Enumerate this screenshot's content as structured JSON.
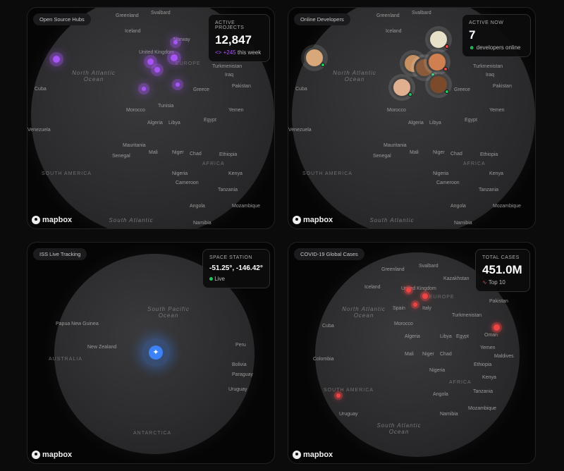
{
  "brand": "mapbox",
  "colors": {
    "projects": "#a855f7",
    "live": "#22c55e",
    "covid": "#ef4444",
    "iss": "#3b82f6"
  },
  "panels": [
    {
      "title": "Open Source Hubs",
      "card": {
        "label": "ACTIVE PROJECTS",
        "value": "12,847",
        "delta": "+245",
        "delta_suffix": "this week",
        "icon": "code-icon"
      },
      "labels": [
        "Greenland",
        "Svalbard",
        "Iceland",
        "Norway",
        "United Kingdom",
        "EUROPE",
        "North Atlantic Ocean",
        "Cuba",
        "Venezuela",
        "Morocco",
        "Algeria",
        "Libya",
        "Tunisia",
        "Greece",
        "Turkmenistan",
        "Iraq",
        "Pakistan",
        "Egypt",
        "Yemen",
        "Mauritania",
        "Mali",
        "Niger",
        "Chad",
        "Senegal",
        "Nigeria",
        "Cameroon",
        "Ethiopia",
        "Kenya",
        "Tanzania",
        "Angola",
        "Mozambique",
        "Namibia",
        "SOUTH AMERICA",
        "AFRICA",
        "South Atlantic"
      ]
    },
    {
      "title": "Online Developers",
      "card": {
        "label": "ACTIVE NOW",
        "value": "7",
        "sub": "developers online",
        "icon": "users-icon"
      },
      "labels": [
        "Greenland",
        "Svalbard",
        "Iceland",
        "North Atlantic Ocean",
        "Cuba",
        "Venezuela",
        "Morocco",
        "Algeria",
        "Libya",
        "Greece",
        "Turkmenistan",
        "Iraq",
        "Pakistan",
        "Egypt",
        "Yemen",
        "Mauritania",
        "Mali",
        "Niger",
        "Chad",
        "Senegal",
        "Nigeria",
        "Cameroon",
        "Ethiopia",
        "Kenya",
        "Tanzania",
        "Angola",
        "Mozambique",
        "Namibia",
        "SOUTH AMERICA",
        "AFRICA",
        "South Atlantic"
      ]
    },
    {
      "title": "ISS Live Tracking",
      "card": {
        "label": "SPACE STATION",
        "value": "-51.25°, -146.42°",
        "status": "Live"
      },
      "labels": [
        "South Pacific Ocean",
        "Papua New Guinea",
        "New Zealand",
        "AUSTRALIA",
        "Peru",
        "Bolivia",
        "Paraguay",
        "Uruguay",
        "ANTARCTICA"
      ]
    },
    {
      "title": "COVID-19 Global Cases",
      "card": {
        "label": "TOTAL CASES",
        "value": "451.0M",
        "sub": "Top 10",
        "icon": "activity-icon"
      },
      "labels": [
        "Greenland",
        "Svalbard",
        "Iceland",
        "United Kingdom",
        "Spain",
        "Italy",
        "EUROPE",
        "Kazakhstan",
        "Turkmenistan",
        "Pakistan",
        "Oman",
        "North Atlantic Ocean",
        "Cuba",
        "Colombia",
        "Morocco",
        "Algeria",
        "Libya",
        "Egypt",
        "Mali",
        "Niger",
        "Chad",
        "Yemen",
        "Maldives",
        "Nigeria",
        "Ethiopia",
        "Kenya",
        "Tanzania",
        "Angola",
        "Mozambique",
        "Namibia",
        "SOUTH AMERICA",
        "Uruguay",
        "AFRICA",
        "South Atlantic Ocean"
      ]
    }
  ]
}
